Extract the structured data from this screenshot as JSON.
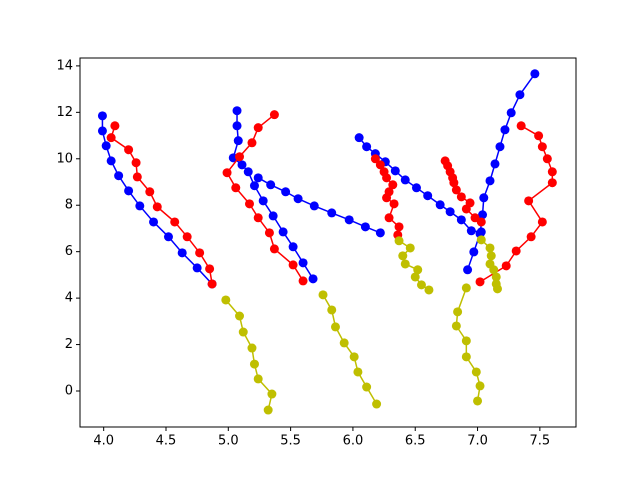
{
  "chart_data": {
    "type": "line",
    "xlim": [
      3.81,
      7.79
    ],
    "ylim": [
      -1.55,
      14.34
    ],
    "xticks": [
      {
        "value": 4,
        "label": "4.0"
      },
      {
        "value": 4.5,
        "label": "4.5"
      },
      {
        "value": 5,
        "label": "5.0"
      },
      {
        "value": 5.5,
        "label": "5.5"
      },
      {
        "value": 6,
        "label": "6.0"
      },
      {
        "value": 6.5,
        "label": "6.5"
      },
      {
        "value": 7,
        "label": "7.0"
      },
      {
        "value": 7.5,
        "label": "7.5"
      }
    ],
    "yticks": [
      0,
      2,
      4,
      6,
      8,
      10,
      12,
      14
    ],
    "grid": false,
    "series": [
      {
        "color": "#0000ff",
        "x": [
          3.99,
          3.99,
          4.02,
          4.06,
          4.12,
          4.2,
          4.29,
          4.4,
          4.52,
          4.63,
          4.75,
          4.87
        ],
        "values": [
          11.85,
          11.2,
          10.56,
          9.91,
          9.27,
          8.62,
          7.97,
          7.28,
          6.64,
          5.95,
          5.3,
          4.61
        ]
      },
      {
        "color": "#ff0000",
        "x": [
          4.09,
          4.06,
          4.2,
          4.26,
          4.27,
          4.37,
          4.43,
          4.57,
          4.67,
          4.77,
          4.85,
          4.87
        ],
        "values": [
          11.42,
          10.91,
          10.39,
          9.83,
          9.22,
          8.58,
          7.93,
          7.28,
          6.64,
          5.95,
          5.26,
          4.61
        ]
      },
      {
        "color": "#bfbf00",
        "x": [
          4.98,
          5.09,
          5.12,
          5.19,
          5.21,
          5.24,
          5.35,
          5.32
        ],
        "values": [
          3.92,
          3.23,
          2.54,
          1.85,
          1.16,
          0.52,
          -0.13,
          -0.82
        ]
      },
      {
        "color": "#0000ff",
        "x": [
          5.07,
          5.07,
          5.08,
          5.04,
          5.11,
          5.16,
          5.21,
          5.28,
          5.36,
          5.44,
          5.52,
          5.6,
          5.68
        ],
        "values": [
          12.07,
          11.42,
          10.78,
          10.04,
          9.74,
          9.44,
          8.84,
          8.19,
          7.54,
          6.85,
          6.21,
          5.52,
          4.83
        ]
      },
      {
        "color": "#0000ff",
        "x": [
          5.24,
          5.34,
          5.46,
          5.56,
          5.69,
          5.83,
          5.97,
          6.1,
          6.22
        ],
        "values": [
          9.18,
          8.88,
          8.58,
          8.28,
          7.97,
          7.67,
          7.37,
          7.07,
          6.81
        ]
      },
      {
        "color": "#ff0000",
        "x": [
          5.37,
          5.24,
          5.19,
          5.09,
          4.99,
          5.06,
          5.17,
          5.24,
          5.33,
          5.37,
          5.52,
          5.6
        ],
        "values": [
          11.9,
          11.34,
          10.69,
          10.09,
          9.4,
          8.75,
          8.06,
          7.46,
          6.81,
          6.12,
          5.43,
          4.74
        ]
      },
      {
        "color": "#bfbf00",
        "x": [
          5.76,
          5.83,
          5.86,
          5.93,
          6.01,
          6.04,
          6.11,
          6.19
        ],
        "values": [
          4.14,
          3.49,
          2.76,
          2.07,
          1.47,
          0.82,
          0.17,
          -0.56
        ]
      },
      {
        "color": "#0000ff",
        "x": [
          6.05,
          6.11,
          6.18,
          6.26,
          6.34,
          6.42,
          6.51,
          6.6,
          6.7,
          6.78,
          6.87,
          6.95,
          7.03
        ],
        "values": [
          10.91,
          10.52,
          10.22,
          9.87,
          9.48,
          9.09,
          8.75,
          8.41,
          8.02,
          7.72,
          7.37,
          6.9,
          6.85
        ]
      },
      {
        "color": "#0000ff",
        "x": [
          6.92,
          6.97,
          7.02,
          7.04,
          7.05,
          7.1,
          7.14,
          7.18,
          7.22,
          7.27,
          7.34,
          7.46
        ],
        "values": [
          5.22,
          5.99,
          6.77,
          7.59,
          8.32,
          9.05,
          9.78,
          10.52,
          11.25,
          11.98,
          12.76,
          13.66
        ]
      },
      {
        "color": "#ff0000",
        "x": [
          6.18,
          6.22,
          6.25,
          6.27,
          6.32,
          6.29,
          6.27,
          6.33,
          6.29,
          6.37,
          6.36
        ],
        "values": [
          10.0,
          9.74,
          9.44,
          9.18,
          8.88,
          8.58,
          8.32,
          8.06,
          7.46,
          7.07,
          6.72
        ]
      },
      {
        "color": "#ff0000",
        "x": [
          6.74,
          6.76,
          6.78,
          6.8,
          6.81,
          6.83,
          6.87,
          6.94,
          6.91,
          6.98,
          7.03
        ],
        "values": [
          9.91,
          9.7,
          9.44,
          9.18,
          8.97,
          8.66,
          8.36,
          8.1,
          7.84,
          7.46,
          7.28
        ]
      },
      {
        "color": "#ff0000",
        "x": [
          7.02,
          7.23,
          7.31,
          7.43,
          7.52,
          7.41,
          7.6,
          7.6,
          7.56,
          7.52,
          7.49,
          7.35
        ],
        "values": [
          4.7,
          5.39,
          6.03,
          6.64,
          7.28,
          8.19,
          8.97,
          9.44,
          10.0,
          10.52,
          10.99,
          11.42
        ]
      },
      {
        "color": "#bfbf00",
        "x": [
          6.37,
          6.46,
          6.4,
          6.42,
          6.52,
          6.5,
          6.55,
          6.61
        ],
        "values": [
          6.47,
          6.16,
          5.82,
          5.47,
          5.22,
          4.91,
          4.57,
          4.35
        ]
      },
      {
        "color": "#bfbf00",
        "x": [
          6.91,
          6.84,
          6.83,
          6.91,
          6.91,
          6.99,
          7.02,
          7.0
        ],
        "values": [
          4.44,
          3.41,
          2.8,
          2.16,
          1.47,
          0.82,
          0.22,
          -0.43
        ]
      },
      {
        "color": "#bfbf00",
        "x": [
          7.03,
          7.1,
          7.11,
          7.1,
          7.13,
          7.15,
          7.15,
          7.16
        ],
        "values": [
          6.51,
          6.16,
          5.82,
          5.47,
          5.22,
          4.91,
          4.61,
          4.4
        ]
      }
    ]
  }
}
